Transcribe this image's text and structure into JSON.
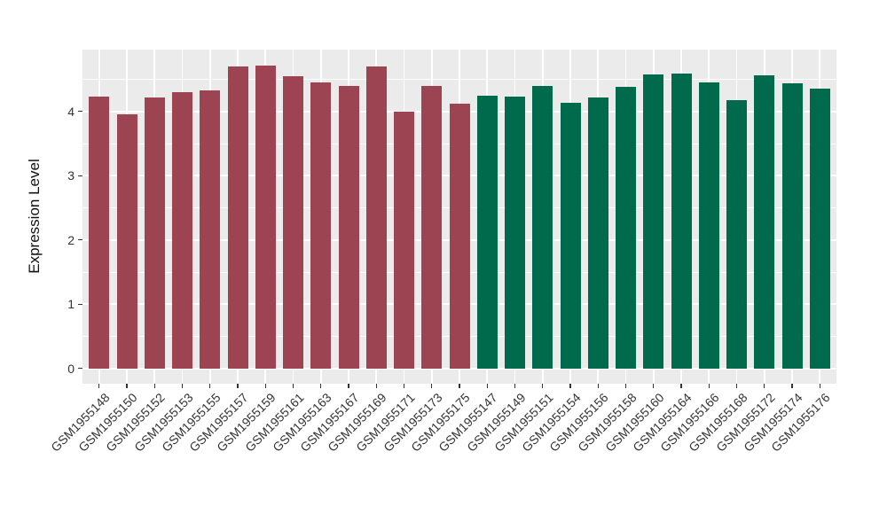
{
  "chart_data": {
    "type": "bar",
    "title": "",
    "xlabel": "",
    "ylabel": "Expression Level",
    "ylim": [
      0,
      4.95
    ],
    "yticks": [
      0,
      1,
      2,
      3,
      4
    ],
    "yminor_gridlines": [
      0.5,
      1.5,
      2.5,
      3.5,
      4.5
    ],
    "grid": "ggplot-style: white major and minor gridlines on gray panel",
    "legend_position": "none",
    "panel_bg": "#EBEBEB",
    "gridline_color": "#FFFFFF",
    "tick_text_color": "#333333",
    "series": [
      {
        "name": "left-group-dark-red",
        "color": "#9D4452",
        "labels": [
          "GSM1955148",
          "GSM1955150",
          "GSM1955152",
          "GSM1955153",
          "GSM1955155",
          "GSM1955157",
          "GSM1955159",
          "GSM1955161",
          "GSM1955163",
          "GSM1955167",
          "GSM1955169",
          "GSM1955171",
          "GSM1955173",
          "GSM1955175"
        ],
        "values": [
          4.23,
          3.96,
          4.21,
          4.3,
          4.33,
          4.7,
          4.72,
          4.55,
          4.45,
          4.4,
          4.7,
          3.99,
          4.39,
          4.12
        ]
      },
      {
        "name": "right-group-dark-green",
        "color": "#006B4C",
        "labels": [
          "GSM1955147",
          "GSM1955149",
          "GSM1955151",
          "GSM1955154",
          "GSM1955156",
          "GSM1955158",
          "GSM1955160",
          "GSM1955164",
          "GSM1955166",
          "GSM1955168",
          "GSM1955172",
          "GSM1955174",
          "GSM1955176"
        ],
        "values": [
          4.25,
          4.23,
          4.4,
          4.13,
          4.21,
          4.38,
          4.57,
          4.59,
          4.45,
          4.17,
          4.56,
          4.44,
          4.35
        ]
      }
    ]
  }
}
